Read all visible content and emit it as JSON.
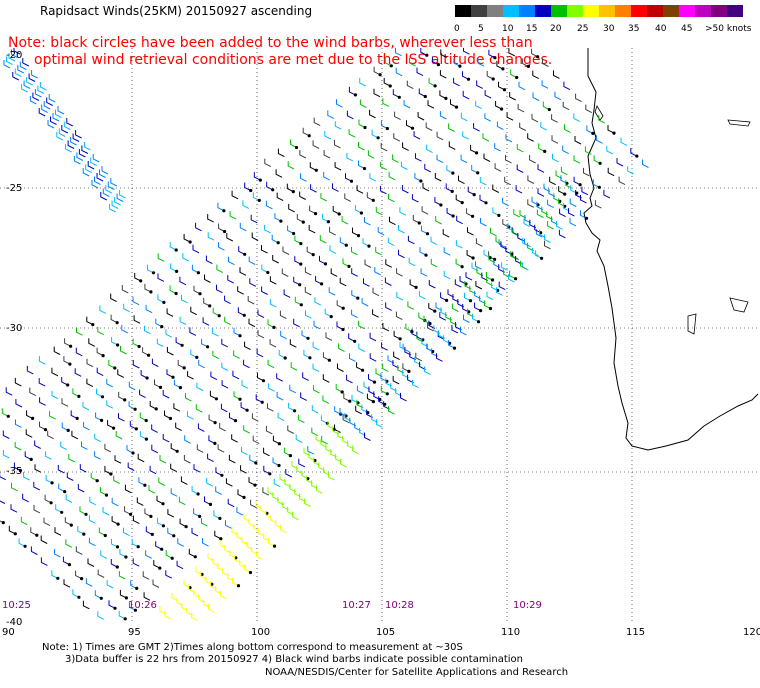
{
  "header": {
    "title": "Rapidsact Winds(25KM) 20150927 ascending",
    "note_line1": "Note: black circles have been added to the wind barbs, wherever less than",
    "note_line2": "optimal wind retrieval conditions are met due to the ISS altitude changes."
  },
  "scale": {
    "colors": [
      "#000000",
      "#404040",
      "#808080",
      "#00bfff",
      "#0080ff",
      "#0000c0",
      "#00c000",
      "#80ff00",
      "#ffff00",
      "#ffc000",
      "#ff8000",
      "#ff0000",
      "#c00000",
      "#804000",
      "#ff00ff",
      "#c000c0",
      "#800080",
      "#400080"
    ],
    "labels": [
      "0",
      "5",
      "10",
      "15",
      "20",
      "25",
      "30",
      "35",
      "40",
      "45",
      ">50 knots"
    ]
  },
  "axes": {
    "lat_labels": [
      "-20",
      "-25",
      "-30",
      "-35",
      "-40"
    ],
    "lon_labels": [
      "90",
      "95",
      "100",
      "105",
      "110",
      "115",
      "120"
    ]
  },
  "time_labels": [
    "10:25",
    "10:26",
    "10:27",
    "10:28",
    "10:29"
  ],
  "footer": {
    "line1": "Note: 1) Times are GMT 2)Times along bottom correspond to measurement at ~30S",
    "line2": "3)Data buffer is 22 hrs from 20150927 4) Black wind barbs indicate possible contamination",
    "line3": "NOAA/NESDIS/Center for Satellite Applications and Research"
  }
}
